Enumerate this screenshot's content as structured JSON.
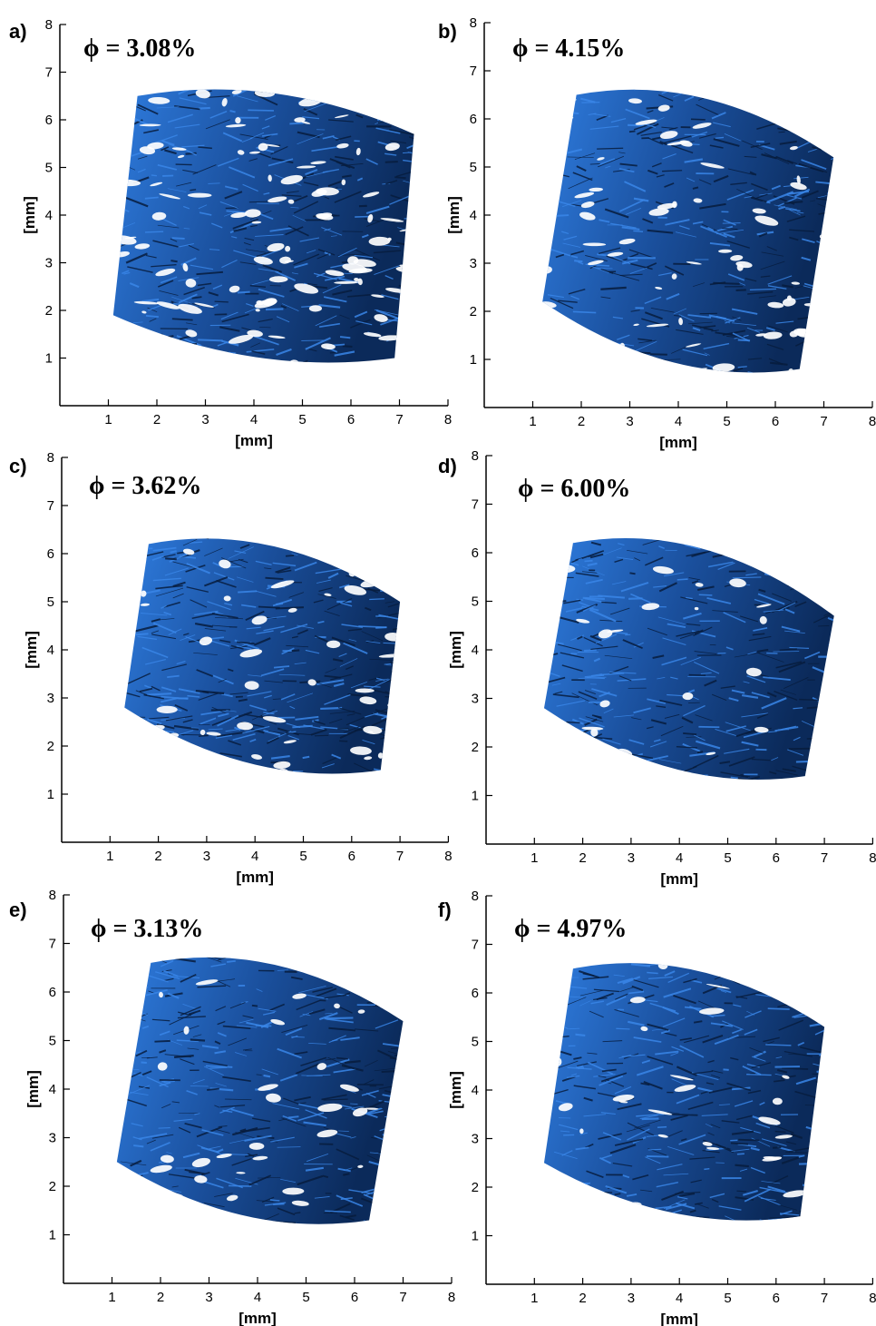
{
  "figure": {
    "axis_unit_label": "[mm]",
    "ticks": [
      "1",
      "2",
      "3",
      "4",
      "5",
      "6",
      "7",
      "8"
    ],
    "sample_color": "#1a4f9c",
    "sample_highlight": "#2f7de0",
    "sample_shadow": "#0b2a5a",
    "panels": [
      {
        "label": "a)",
        "phi": "ϕ = 3.08%",
        "fill": 0.55
      },
      {
        "label": "b)",
        "phi": "ϕ = 4.15%",
        "fill": 0.75
      },
      {
        "label": "c)",
        "phi": "ϕ = 3.62%",
        "fill": 0.8
      },
      {
        "label": "d)",
        "phi": "ϕ = 6.00%",
        "fill": 0.9
      },
      {
        "label": "e)",
        "phi": "ϕ = 3.13%",
        "fill": 0.85
      },
      {
        "label": "f)",
        "phi": "ϕ = 4.97%",
        "fill": 0.88
      }
    ]
  }
}
